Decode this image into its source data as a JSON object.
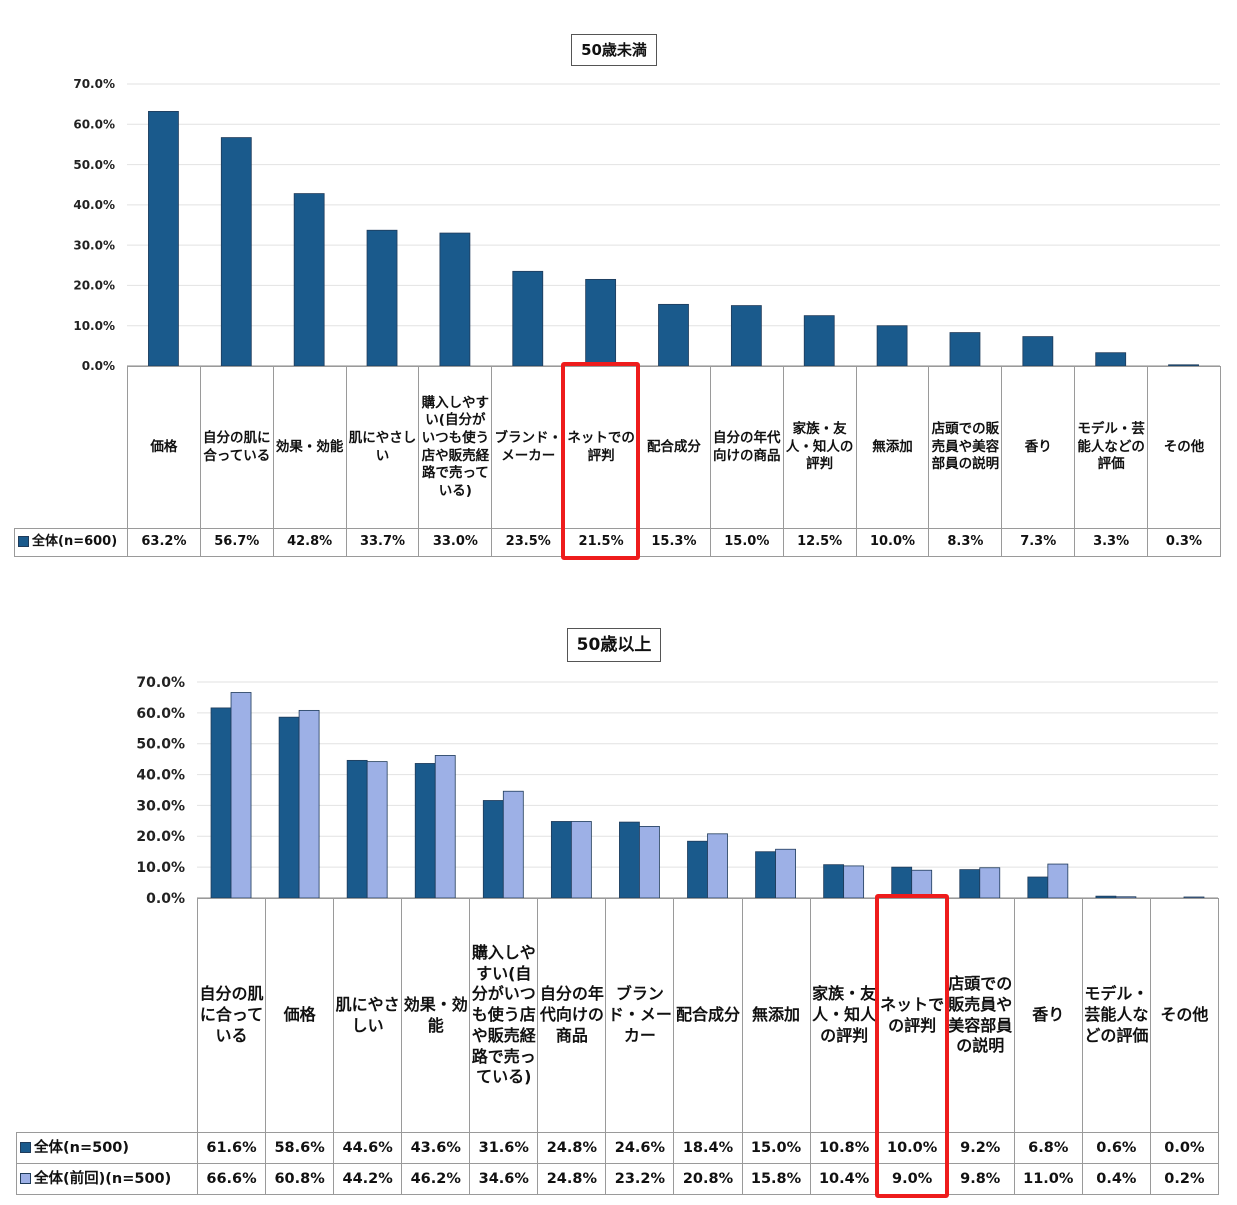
{
  "chart_data": [
    {
      "type": "bar",
      "title": "50歳未満",
      "ylim": [
        0,
        70
      ],
      "yticks": [
        "0.0%",
        "10.0%",
        "20.0%",
        "30.0%",
        "40.0%",
        "50.0%",
        "60.0%",
        "70.0%"
      ],
      "grid": true,
      "legend": "table-left",
      "highlight_category": "ネットでの評判",
      "categories": [
        "価格",
        "自分の肌に合っている",
        "効果・効能",
        "肌にやさしい",
        "購入しやすい(自分がいつも使う店や販売経路で売っている)",
        "ブランド・メーカー",
        "ネットでの評判",
        "配合成分",
        "自分の年代向けの商品",
        "家族・友人・知人の評判",
        "無添加",
        "店頭での販売員や美容部員の説明",
        "香り",
        "モデル・芸能人などの評価",
        "その他"
      ],
      "series": [
        {
          "name": "全体(n=600)",
          "color": "#1a5a8c",
          "values": [
            63.2,
            56.7,
            42.8,
            33.7,
            33.0,
            23.5,
            21.5,
            15.3,
            15.0,
            12.5,
            10.0,
            8.3,
            7.3,
            3.3,
            0.3
          ],
          "labels": [
            "63.2%",
            "56.7%",
            "42.8%",
            "33.7%",
            "33.0%",
            "23.5%",
            "21.5%",
            "15.3%",
            "15.0%",
            "12.5%",
            "10.0%",
            "8.3%",
            "7.3%",
            "3.3%",
            "0.3%"
          ]
        }
      ]
    },
    {
      "type": "bar",
      "title": "50歳以上",
      "ylim": [
        0,
        70
      ],
      "yticks": [
        "0.0%",
        "10.0%",
        "20.0%",
        "30.0%",
        "40.0%",
        "50.0%",
        "60.0%",
        "70.0%"
      ],
      "grid": true,
      "legend": "table-left",
      "highlight_category": "ネットでの評判",
      "categories": [
        "自分の肌に合っている",
        "価格",
        "肌にやさしい",
        "効果・効能",
        "購入しやすい(自分がいつも使う店や販売経路で売っている)",
        "自分の年代向けの商品",
        "ブランド・メーカー",
        "配合成分",
        "無添加",
        "家族・友人・知人の評判",
        "ネットでの評判",
        "店頭での販売員や美容部員の説明",
        "香り",
        "モデル・芸能人などの評価",
        "その他"
      ],
      "series": [
        {
          "name": "全体(n=500)",
          "color": "#1a5a8c",
          "values": [
            61.6,
            58.6,
            44.6,
            43.6,
            31.6,
            24.8,
            24.6,
            18.4,
            15.0,
            10.8,
            10.0,
            9.2,
            6.8,
            0.6,
            0.0
          ],
          "labels": [
            "61.6%",
            "58.6%",
            "44.6%",
            "43.6%",
            "31.6%",
            "24.8%",
            "24.6%",
            "18.4%",
            "15.0%",
            "10.8%",
            "10.0%",
            "9.2%",
            "6.8%",
            "0.6%",
            "0.0%"
          ]
        },
        {
          "name": "全体(前回)(n=500)",
          "color": "#9db0e6",
          "values": [
            66.6,
            60.8,
            44.2,
            46.2,
            34.6,
            24.8,
            23.2,
            20.8,
            15.8,
            10.4,
            9.0,
            9.8,
            11.0,
            0.4,
            0.2
          ],
          "labels": [
            "66.6%",
            "60.8%",
            "44.2%",
            "46.2%",
            "34.6%",
            "24.8%",
            "23.2%",
            "20.8%",
            "15.8%",
            "10.4%",
            "9.0%",
            "9.8%",
            "11.0%",
            "0.4%",
            "0.2%"
          ]
        }
      ]
    }
  ]
}
